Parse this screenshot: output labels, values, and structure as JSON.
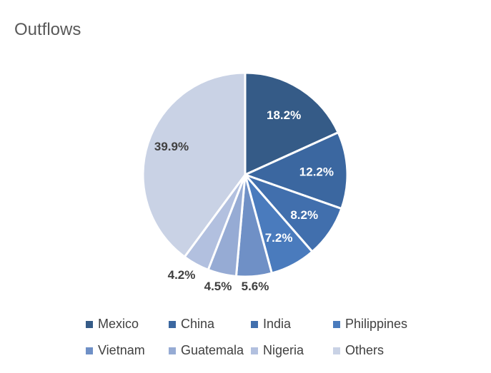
{
  "chart_data": {
    "type": "pie",
    "title": "Outflows",
    "categories": [
      "Mexico",
      "China",
      "India",
      "Philippines",
      "Vietnam",
      "Guatemala",
      "Nigeria",
      "Others"
    ],
    "values": [
      18.2,
      12.2,
      8.2,
      7.2,
      5.6,
      4.5,
      4.2,
      39.9
    ],
    "labels": [
      "18.2%",
      "12.2%",
      "8.2%",
      "7.2%",
      "5.6%",
      "4.5%",
      "4.2%",
      "39.9%"
    ],
    "colors": [
      "#355b87",
      "#3b67a0",
      "#416fad",
      "#4a7bbd",
      "#6f90c6",
      "#96abd4",
      "#b2c0df",
      "#c9d2e5"
    ],
    "label_colors": [
      "#ffffff",
      "#ffffff",
      "#ffffff",
      "#ffffff",
      "#404040",
      "#404040",
      "#404040",
      "#404040"
    ],
    "legend_position": "bottom"
  }
}
